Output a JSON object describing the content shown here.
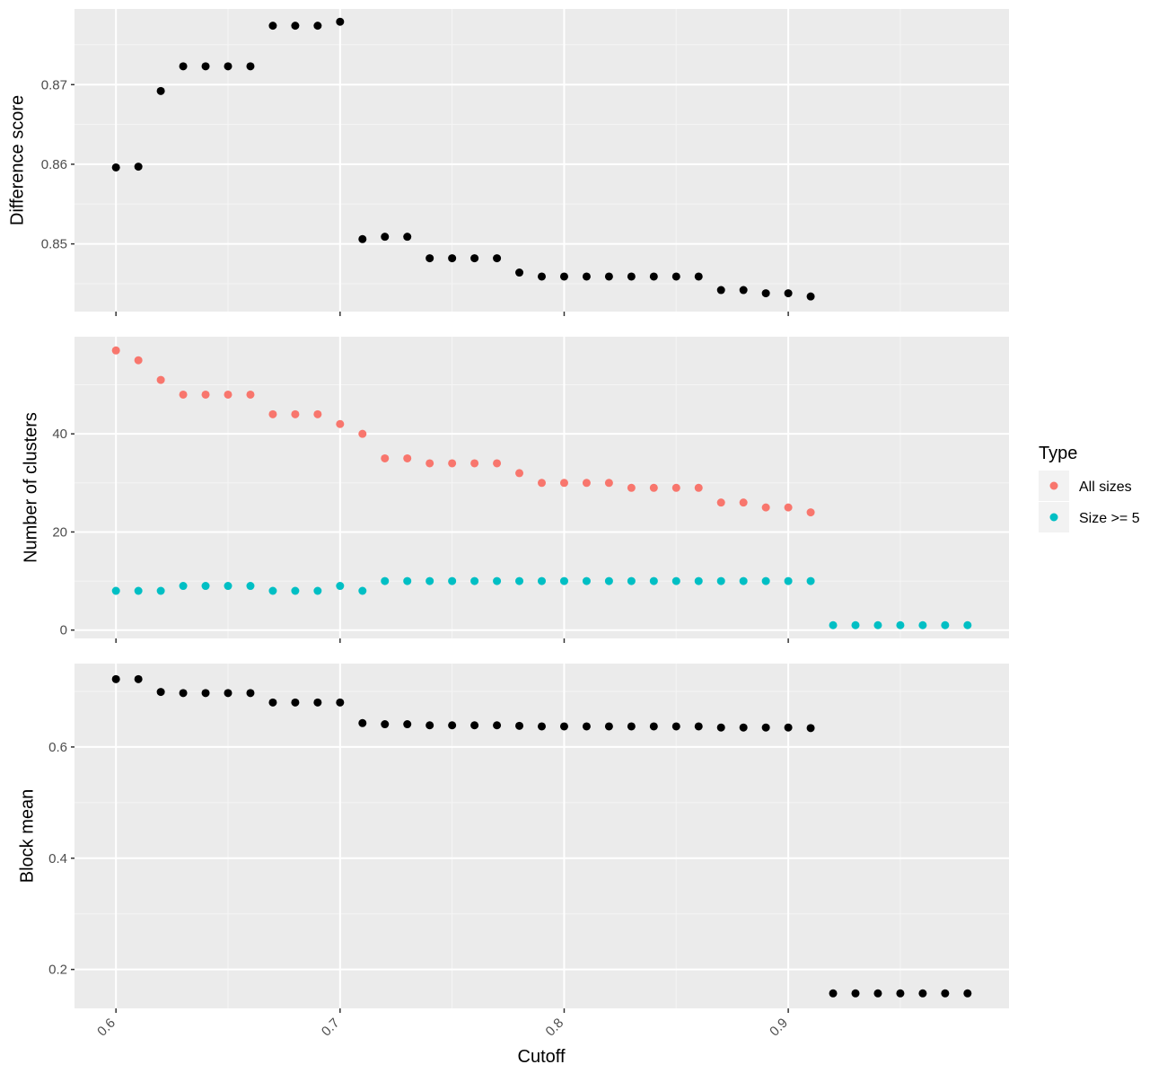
{
  "colors": {
    "panel_bg": "#ebebeb",
    "grid_major": "#ffffff",
    "grid_minor": "#f5f5f5",
    "tick": "#333333",
    "point_default": "#000000",
    "all_sizes": "#f8766d",
    "size_ge5": "#00bfc4"
  },
  "xlabel": "Cutoff",
  "x_ticks": [
    "0.6",
    "0.7",
    "0.8",
    "0.9"
  ],
  "legend": {
    "title": "Type",
    "placement": "right",
    "items": [
      {
        "label": "All sizes",
        "color_key": "all_sizes"
      },
      {
        "label": "Size >= 5",
        "color_key": "size_ge5"
      }
    ]
  },
  "chart_data": [
    {
      "type": "scatter",
      "ylabel": "Difference score",
      "y_ticks": [
        "0.85",
        "0.86",
        "0.87"
      ],
      "ylim": [
        0.8415,
        0.8795
      ],
      "xlim": [
        0.5815,
        0.9985
      ],
      "grid": true,
      "series": [
        {
          "color_key": "point_default",
          "x": [
            0.6,
            0.61,
            0.62,
            0.63,
            0.64,
            0.65,
            0.66,
            0.67,
            0.68,
            0.69,
            0.7,
            0.71,
            0.72,
            0.73,
            0.74,
            0.75,
            0.76,
            0.77,
            0.78,
            0.79,
            0.8,
            0.81,
            0.82,
            0.83,
            0.84,
            0.85,
            0.86,
            0.87,
            0.88,
            0.89,
            0.9,
            0.91
          ],
          "y": [
            0.8596,
            0.8597,
            0.8692,
            0.8723,
            0.8723,
            0.8723,
            0.8723,
            0.8774,
            0.8774,
            0.8774,
            0.8779,
            0.8506,
            0.8509,
            0.8509,
            0.8482,
            0.8482,
            0.8482,
            0.8482,
            0.8464,
            0.8459,
            0.8459,
            0.8459,
            0.8459,
            0.8459,
            0.8459,
            0.8459,
            0.8459,
            0.8442,
            0.8442,
            0.8438,
            0.8438,
            0.8434
          ]
        }
      ]
    },
    {
      "type": "scatter",
      "ylabel": "Number of clusters",
      "y_ticks": [
        "0",
        "20",
        "40"
      ],
      "ylim": [
        -1.7,
        59.8
      ],
      "xlim": [
        0.5815,
        0.9985
      ],
      "grid": true,
      "series": [
        {
          "name": "All sizes",
          "color_key": "all_sizes",
          "x": [
            0.6,
            0.61,
            0.62,
            0.63,
            0.64,
            0.65,
            0.66,
            0.67,
            0.68,
            0.69,
            0.7,
            0.71,
            0.72,
            0.73,
            0.74,
            0.75,
            0.76,
            0.77,
            0.78,
            0.79,
            0.8,
            0.81,
            0.82,
            0.83,
            0.84,
            0.85,
            0.86,
            0.87,
            0.88,
            0.89,
            0.9,
            0.91
          ],
          "y": [
            57,
            55,
            51,
            48,
            48,
            48,
            48,
            44,
            44,
            44,
            42,
            40,
            35,
            35,
            34,
            34,
            34,
            34,
            32,
            30,
            30,
            30,
            30,
            29,
            29,
            29,
            29,
            26,
            26,
            25,
            25,
            24
          ]
        },
        {
          "name": "Size >= 5",
          "color_key": "size_ge5",
          "x": [
            0.6,
            0.61,
            0.62,
            0.63,
            0.64,
            0.65,
            0.66,
            0.67,
            0.68,
            0.69,
            0.7,
            0.71,
            0.72,
            0.73,
            0.74,
            0.75,
            0.76,
            0.77,
            0.78,
            0.79,
            0.8,
            0.81,
            0.82,
            0.83,
            0.84,
            0.85,
            0.86,
            0.87,
            0.88,
            0.89,
            0.9,
            0.91,
            0.92,
            0.93,
            0.94,
            0.95,
            0.96,
            0.97,
            0.98
          ],
          "y": [
            8,
            8,
            8,
            9,
            9,
            9,
            9,
            8,
            8,
            8,
            9,
            8,
            10,
            10,
            10,
            10,
            10,
            10,
            10,
            10,
            10,
            10,
            10,
            10,
            10,
            10,
            10,
            10,
            10,
            10,
            10,
            10,
            1,
            1,
            1,
            1,
            1,
            1,
            1
          ]
        }
      ]
    },
    {
      "type": "scatter",
      "ylabel": "Block mean",
      "y_ticks": [
        "0.2",
        "0.4",
        "0.6"
      ],
      "ylim": [
        0.13,
        0.75
      ],
      "xlim": [
        0.5815,
        0.9985
      ],
      "grid": true,
      "series": [
        {
          "color_key": "point_default",
          "x": [
            0.6,
            0.61,
            0.62,
            0.63,
            0.64,
            0.65,
            0.66,
            0.67,
            0.68,
            0.69,
            0.7,
            0.71,
            0.72,
            0.73,
            0.74,
            0.75,
            0.76,
            0.77,
            0.78,
            0.79,
            0.8,
            0.81,
            0.82,
            0.83,
            0.84,
            0.85,
            0.86,
            0.87,
            0.88,
            0.89,
            0.9,
            0.91,
            0.92,
            0.93,
            0.94,
            0.95,
            0.96,
            0.97,
            0.98
          ],
          "y": [
            0.722,
            0.722,
            0.699,
            0.697,
            0.697,
            0.697,
            0.697,
            0.68,
            0.68,
            0.68,
            0.68,
            0.643,
            0.641,
            0.641,
            0.639,
            0.639,
            0.639,
            0.639,
            0.638,
            0.637,
            0.637,
            0.637,
            0.637,
            0.637,
            0.637,
            0.637,
            0.637,
            0.635,
            0.635,
            0.635,
            0.635,
            0.634,
            0.157,
            0.157,
            0.157,
            0.157,
            0.157,
            0.157,
            0.157
          ]
        }
      ]
    }
  ]
}
